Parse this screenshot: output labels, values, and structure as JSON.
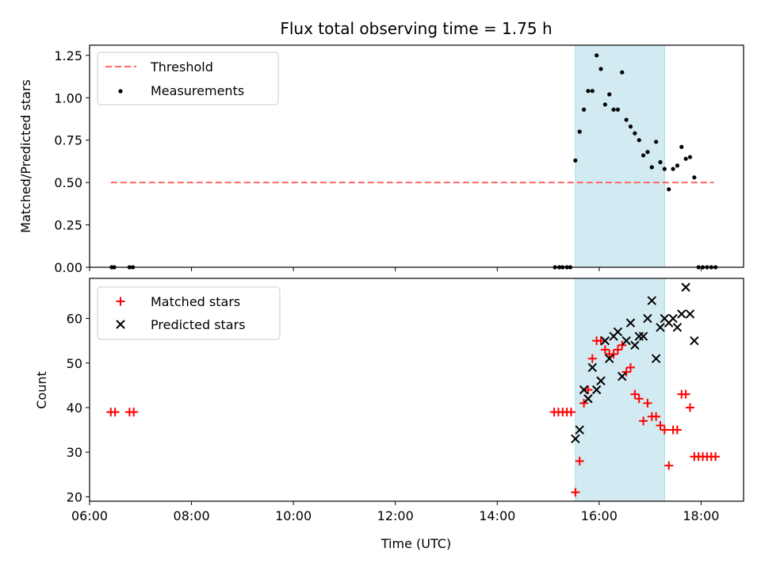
{
  "chart_data": [
    {
      "type": "scatter",
      "title": "Flux total observing time = 1.75 h",
      "xlabel": "",
      "ylabel": "Matched/Predicted stars",
      "xlim": [
        "06:00",
        "18:50"
      ],
      "ylim": [
        0,
        1.31
      ],
      "x_ticks": [
        "06:00",
        "08:00",
        "10:00",
        "12:00",
        "14:00",
        "16:00",
        "18:00"
      ],
      "y_ticks": [
        "0.00",
        "0.25",
        "0.50",
        "0.75",
        "1.00",
        "1.25"
      ],
      "shaded_region": {
        "x_start": "15:32",
        "x_end": "17:17",
        "color": "#add8e6"
      },
      "threshold": {
        "name": "Threshold",
        "value": 0.5,
        "x_start": "06:25",
        "x_end": "18:15",
        "color": "#ff6666",
        "style": "dashed"
      },
      "legend_position": "upper-left",
      "series": [
        {
          "name": "Measurements",
          "color": "#000000",
          "points": [
            [
              "06:26",
              0
            ],
            [
              "06:29",
              0
            ],
            [
              "06:47",
              0
            ],
            [
              "06:51",
              0
            ],
            [
              "15:08",
              0
            ],
            [
              "15:13",
              0
            ],
            [
              "15:17",
              0
            ],
            [
              "15:22",
              0
            ],
            [
              "15:26",
              0
            ],
            [
              "15:32",
              0.63
            ],
            [
              "15:37",
              0.8
            ],
            [
              "15:42",
              0.93
            ],
            [
              "15:47",
              1.04
            ],
            [
              "15:52",
              1.04
            ],
            [
              "15:57",
              1.25
            ],
            [
              "16:02",
              1.17
            ],
            [
              "16:07",
              0.96
            ],
            [
              "16:12",
              1.02
            ],
            [
              "16:17",
              0.93
            ],
            [
              "16:22",
              0.93
            ],
            [
              "16:27",
              1.15
            ],
            [
              "16:32",
              0.87
            ],
            [
              "16:37",
              0.83
            ],
            [
              "16:42",
              0.79
            ],
            [
              "16:47",
              0.75
            ],
            [
              "16:52",
              0.66
            ],
            [
              "16:57",
              0.68
            ],
            [
              "17:02",
              0.59
            ],
            [
              "17:07",
              0.74
            ],
            [
              "17:12",
              0.62
            ],
            [
              "17:17",
              0.58
            ],
            [
              "17:22",
              0.46
            ],
            [
              "17:27",
              0.58
            ],
            [
              "17:32",
              0.6
            ],
            [
              "17:37",
              0.71
            ],
            [
              "17:42",
              0.64
            ],
            [
              "17:47",
              0.65
            ],
            [
              "17:52",
              0.53
            ],
            [
              "17:57",
              0
            ],
            [
              "18:02",
              0
            ],
            [
              "18:07",
              0
            ],
            [
              "18:12",
              0
            ],
            [
              "18:17",
              0
            ]
          ]
        }
      ]
    },
    {
      "type": "scatter",
      "title": "",
      "xlabel": "Time (UTC)",
      "ylabel": "Count",
      "xlim": [
        "06:00",
        "18:50"
      ],
      "ylim": [
        19,
        69
      ],
      "x_ticks": [
        "06:00",
        "08:00",
        "10:00",
        "12:00",
        "14:00",
        "16:00",
        "18:00"
      ],
      "y_ticks": [
        "20",
        "30",
        "40",
        "50",
        "60"
      ],
      "shaded_region": {
        "x_start": "15:32",
        "x_end": "17:17",
        "color": "#add8e6"
      },
      "legend_position": "upper-left",
      "series": [
        {
          "name": "Matched stars",
          "color": "#ff0000",
          "marker": "plus",
          "points": [
            [
              "06:25",
              39
            ],
            [
              "06:30",
              39
            ],
            [
              "06:47",
              39
            ],
            [
              "06:52",
              39
            ],
            [
              "15:07",
              39
            ],
            [
              "15:12",
              39
            ],
            [
              "15:17",
              39
            ],
            [
              "15:22",
              39
            ],
            [
              "15:27",
              39
            ],
            [
              "15:32",
              21
            ],
            [
              "15:37",
              28
            ],
            [
              "15:42",
              41
            ],
            [
              "15:47",
              44
            ],
            [
              "15:52",
              51
            ],
            [
              "15:57",
              55
            ],
            [
              "16:02",
              55
            ],
            [
              "16:07",
              53
            ],
            [
              "16:12",
              52
            ],
            [
              "16:17",
              52
            ],
            [
              "16:22",
              53
            ],
            [
              "16:27",
              54
            ],
            [
              "16:32",
              48
            ],
            [
              "16:37",
              49
            ],
            [
              "16:42",
              43
            ],
            [
              "16:47",
              42
            ],
            [
              "16:52",
              37
            ],
            [
              "16:57",
              41
            ],
            [
              "17:02",
              38
            ],
            [
              "17:07",
              38
            ],
            [
              "17:12",
              36
            ],
            [
              "17:17",
              35
            ],
            [
              "17:22",
              27
            ],
            [
              "17:27",
              35
            ],
            [
              "17:32",
              35
            ],
            [
              "17:37",
              43
            ],
            [
              "17:42",
              43
            ],
            [
              "17:47",
              40
            ],
            [
              "17:52",
              29
            ],
            [
              "17:57",
              29
            ],
            [
              "18:02",
              29
            ],
            [
              "18:07",
              29
            ],
            [
              "18:12",
              29
            ],
            [
              "18:17",
              29
            ]
          ]
        },
        {
          "name": "Predicted stars",
          "color": "#000000",
          "marker": "x",
          "points": [
            [
              "15:32",
              33
            ],
            [
              "15:37",
              35
            ],
            [
              "15:42",
              44
            ],
            [
              "15:47",
              42
            ],
            [
              "15:52",
              49
            ],
            [
              "15:57",
              44
            ],
            [
              "16:02",
              46
            ],
            [
              "16:07",
              55
            ],
            [
              "16:12",
              51
            ],
            [
              "16:17",
              56
            ],
            [
              "16:22",
              57
            ],
            [
              "16:27",
              47
            ],
            [
              "16:32",
              55
            ],
            [
              "16:37",
              59
            ],
            [
              "16:42",
              54
            ],
            [
              "16:47",
              56
            ],
            [
              "16:52",
              56
            ],
            [
              "16:57",
              60
            ],
            [
              "17:02",
              64
            ],
            [
              "17:07",
              51
            ],
            [
              "17:12",
              58
            ],
            [
              "17:17",
              60
            ],
            [
              "17:22",
              59
            ],
            [
              "17:27",
              60
            ],
            [
              "17:32",
              58
            ],
            [
              "17:37",
              61
            ],
            [
              "17:42",
              67
            ],
            [
              "17:47",
              61
            ],
            [
              "17:52",
              55
            ]
          ]
        }
      ]
    }
  ]
}
